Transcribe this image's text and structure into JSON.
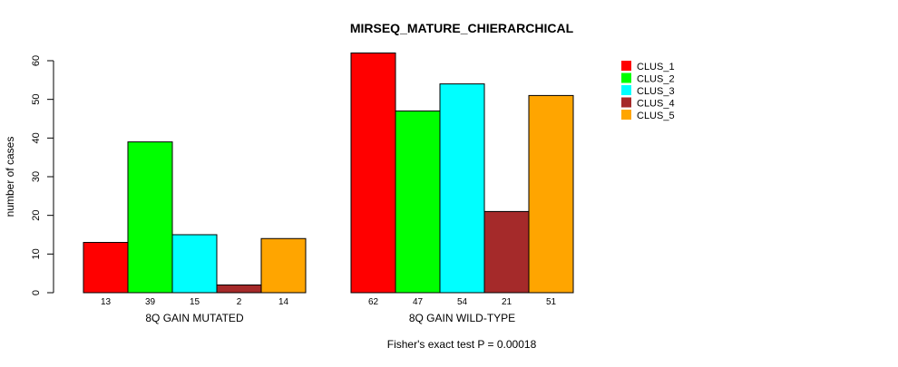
{
  "chart_data": {
    "type": "bar",
    "title": "MIRSEQ_MATURE_CHIERARCHICAL",
    "ylabel": "number of cases",
    "ylim": [
      0,
      60
    ],
    "yticks": [
      0,
      10,
      20,
      30,
      40,
      50,
      60
    ],
    "groups": [
      "8Q GAIN MUTATED",
      "8Q GAIN WILD-TYPE"
    ],
    "series": [
      {
        "name": "CLUS_1",
        "color": "#FF0000",
        "values": [
          13,
          62
        ]
      },
      {
        "name": "CLUS_2",
        "color": "#00FF00",
        "values": [
          39,
          47
        ]
      },
      {
        "name": "CLUS_3",
        "color": "#00FFFF",
        "values": [
          15,
          54
        ]
      },
      {
        "name": "CLUS_4",
        "color": "#A52A2A",
        "values": [
          2,
          21
        ]
      },
      {
        "name": "CLUS_5",
        "color": "#FFA500",
        "values": [
          14,
          51
        ]
      }
    ],
    "legend_position": "top-right",
    "footnote": "Fisher's exact test P = 0.00018"
  }
}
